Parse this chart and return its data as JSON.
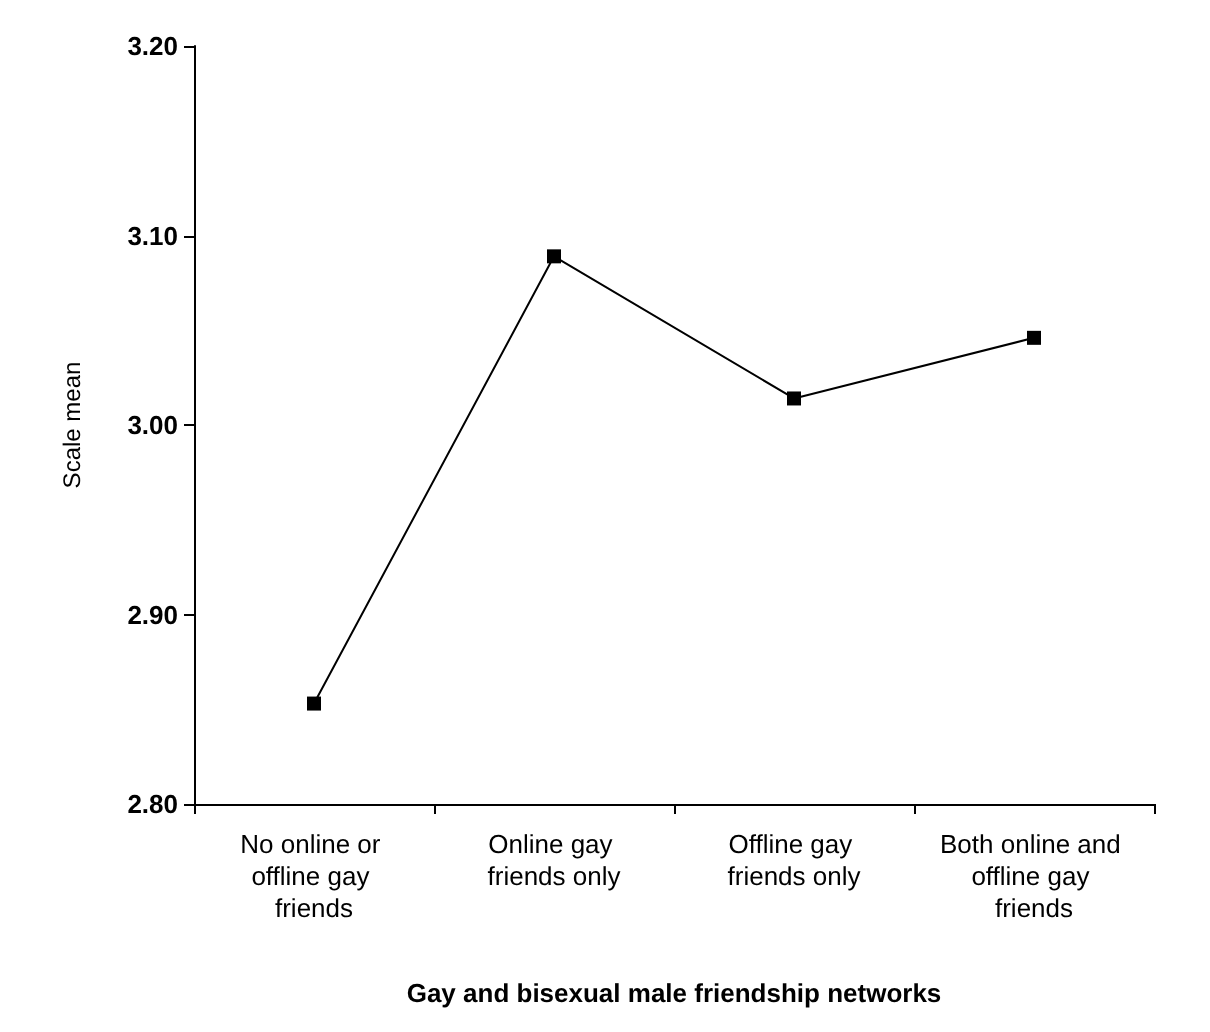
{
  "chart_data": {
    "type": "line",
    "xlabel": "Gay and bisexual male friendship networks",
    "ylabel": "Scale mean",
    "categories": [
      "No online or offline gay friends",
      "Online gay friends only",
      "Offline gay friends only",
      "Both online and offline gay friends"
    ],
    "series": [
      {
        "color": "#000000",
        "values": [
          2.853,
          3.089,
          3.014,
          3.046
        ]
      }
    ],
    "ylim": [
      2.8,
      3.2
    ],
    "yticks": [
      {
        "value": 2.8,
        "label": "2.80"
      },
      {
        "value": 2.9,
        "label": "2.90"
      },
      {
        "value": 3.0,
        "label": "3.00"
      },
      {
        "value": 3.1,
        "label": "3.10"
      },
      {
        "value": 3.2,
        "label": "3.20"
      }
    ],
    "grid": false,
    "marker": "square",
    "line_style": "solid"
  }
}
